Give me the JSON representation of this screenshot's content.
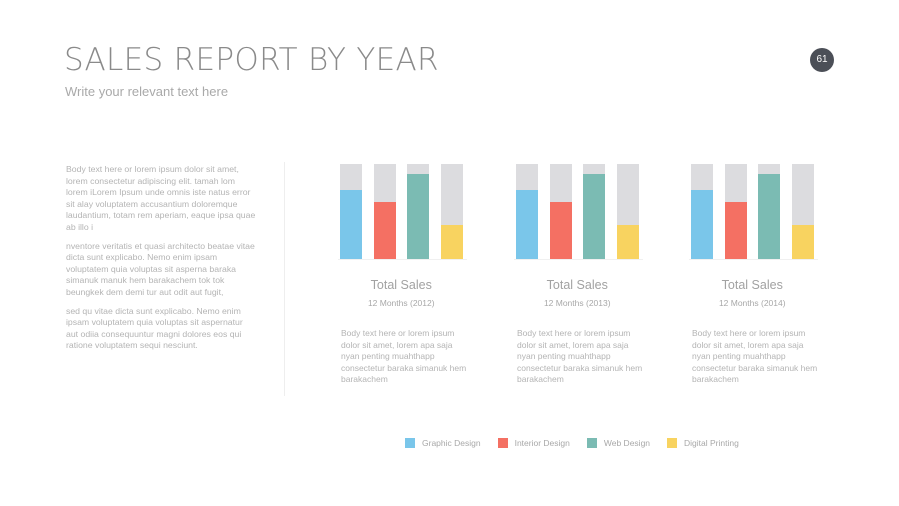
{
  "header": {
    "title": "SALES REPORT BY YEAR",
    "subtitle": "Write your relevant text here",
    "page_number": "61"
  },
  "left_text": {
    "paragraphs": [
      "Body text here or lorem ipsum dolor sit amet, lorem consectetur adipiscing elit. tamah lom lorem iLorem Ipsum unde omnis iste natus error sit alay voluptatem accusantium doloremque laudantium, totam rem aperiam, eaque ipsa quae ab illo i",
      "nventore veritatis et quasi architecto beatae vitae dicta sunt explicabo. Nemo enim ipsam voluptatem quia voluptas sit asperna baraka simanuk manuk hem barakachem tok tok beungkek dem demi tur aut odit aut fugit,",
      "sed qu vitae dicta sunt explicabo. Nemo enim ipsam voluptatem quia voluptas sit aspernatur aut odiia consequuntur magni dolores eos qui ratione voluptatem sequi nesciunt."
    ]
  },
  "colors": {
    "Graphic Design": "#7ac6ea",
    "Interior Design": "#f47063",
    "Web Design": "#7bbbb3",
    "Digital Printing": "#f8d360",
    "track": "#dcdcdf"
  },
  "chart_data": {
    "type": "bar",
    "ylim": [
      0,
      100
    ],
    "unit": "percent",
    "categories": [
      "2012",
      "2013",
      "2014"
    ],
    "series": [
      {
        "name": "Graphic Design",
        "values": [
          73,
          73,
          73
        ]
      },
      {
        "name": "Interior Design",
        "values": [
          60,
          60,
          60
        ]
      },
      {
        "name": "Web Design",
        "values": [
          90,
          90,
          90
        ]
      },
      {
        "name": "Digital Printing",
        "values": [
          36,
          36,
          36
        ]
      }
    ],
    "groups": [
      {
        "title": "Total Sales",
        "subtitle": "12 Months (2012)",
        "body": "Body text here or lorem ipsum dolor sit amet, lorem apa saja nyan penting muahthapp consectetur baraka simanuk hem barakachem"
      },
      {
        "title": "Total Sales",
        "subtitle": "12 Months (2013)",
        "body": "Body text here or lorem ipsum dolor sit amet, lorem apa saja nyan penting muahthapp consectetur baraka simanuk hem barakachem"
      },
      {
        "title": "Total Sales",
        "subtitle": "12 Months (2014)",
        "body": "Body text here or lorem ipsum dolor sit amet, lorem apa saja nyan penting muahthapp consectetur baraka simanuk hem barakachem"
      }
    ],
    "legend": [
      "Graphic Design",
      "Interior Design",
      "Web Design",
      "Digital Printing"
    ],
    "legend_position": "bottom"
  }
}
